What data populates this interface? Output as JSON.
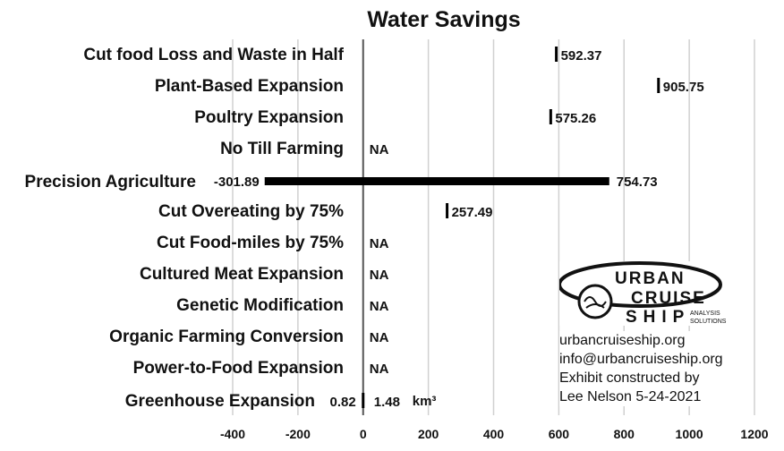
{
  "chart_data": {
    "type": "bar",
    "title": "Water Savings",
    "xlim": [
      -400,
      1200
    ],
    "x_ticks": [
      "-400",
      "-200",
      "0",
      "200",
      "400",
      "600",
      "800",
      "1000",
      "1200"
    ],
    "grid": true,
    "series": [
      {
        "category": "Cut food Loss and Waste in Half",
        "low": 592.37,
        "high": 592.37,
        "label_high": "592.37"
      },
      {
        "category": "Plant-Based Expansion",
        "low": 905.75,
        "high": 905.75,
        "label_high": "905.75"
      },
      {
        "category": "Poultry Expansion",
        "low": 575.26,
        "high": 575.26,
        "label_high": "575.26"
      },
      {
        "category": "No Till Farming",
        "na": true,
        "label": "NA"
      },
      {
        "category": "Precision Agriculture",
        "low": -301.89,
        "high": 754.73,
        "label_low": "-301.89",
        "label_high": "754.73"
      },
      {
        "category": "Cut Overeating by 75%",
        "low": 257.49,
        "high": 257.49,
        "label_high": "257.49"
      },
      {
        "category": "Cut Food-miles by 75%",
        "na": true,
        "label": "NA"
      },
      {
        "category": "Cultured Meat Expansion",
        "na": true,
        "label": "NA"
      },
      {
        "category": "Genetic Modification",
        "na": true,
        "label": "NA"
      },
      {
        "category": "Organic Farming Conversion",
        "na": true,
        "label": "NA"
      },
      {
        "category": "Power-to-Food Expansion",
        "na": true,
        "label": "NA"
      },
      {
        "category": "Greenhouse Expansion",
        "low": 0.82,
        "high": 1.48,
        "label_low": "0.82",
        "label_high": "1.48",
        "unit": "km³"
      }
    ]
  },
  "logo": {
    "line1": "URBAN",
    "line2": "CRUISE",
    "line3": "SHIP",
    "tagline1": "ANALYSIS",
    "tagline2": "SOLUTIONS"
  },
  "credit": {
    "website": "urbancruiseship.org",
    "email": "info@urbancruiseship.org",
    "line3": "Exhibit constructed by",
    "line4": "Lee Nelson 5-24-2021"
  },
  "colors": {
    "bar": "#000000",
    "grid": "#d0d0d0",
    "zero_axis": "#555555"
  }
}
